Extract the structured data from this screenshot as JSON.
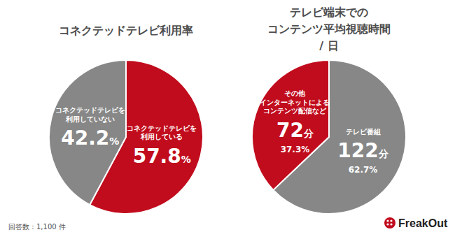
{
  "chart_data": [
    {
      "type": "pie",
      "title": "コネクテッドテレビ利用率",
      "categories": [
        "コネクテッドテレビを\n利用している",
        "コネクテッドテレビを\n利用していない"
      ],
      "values": [
        57.8,
        42.2
      ],
      "value_labels": [
        "57.8%",
        "42.2%"
      ],
      "colors": [
        "#c10c1d",
        "#878787"
      ],
      "data_labels": true
    },
    {
      "type": "pie",
      "title": "テレビ端末での\nコンテンツ平均視聴時間 / 日",
      "categories": [
        "テレビ番組",
        "その他\nインターネットによる\nコンテンツ配信など"
      ],
      "values": [
        122,
        72
      ],
      "value_labels": [
        "122分",
        "72分"
      ],
      "shares": [
        62.7,
        37.3
      ],
      "share_labels": [
        "62.7%",
        "37.3%"
      ],
      "colors": [
        "#878787",
        "#c10c1d"
      ],
      "data_labels": true
    }
  ],
  "footer": {
    "note": "回答数：1,100 件",
    "logo": "FreakOut"
  }
}
